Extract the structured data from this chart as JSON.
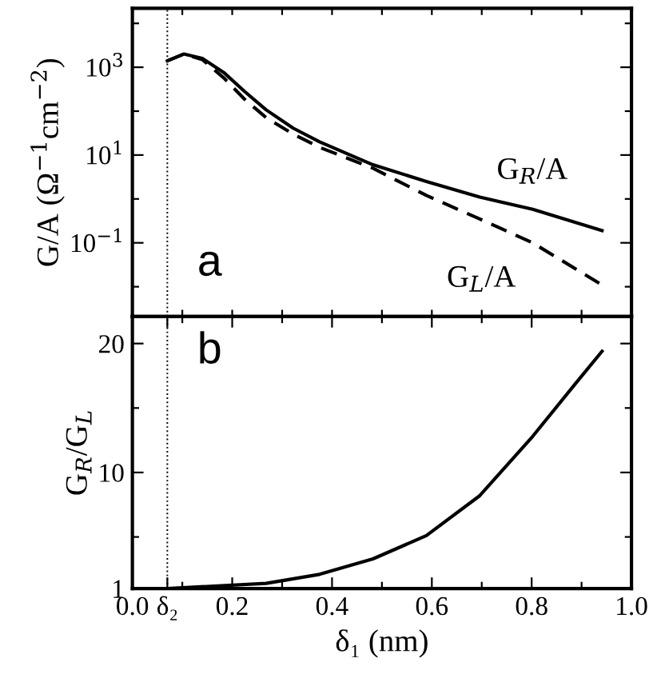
{
  "chart_data": [
    {
      "type": "line",
      "ylabel": "G/A (Ω$^{−1}$cm$^{−2}$)",
      "log": "y",
      "xlim": [
        0.0,
        1.0
      ],
      "ylim": [
        0.0021,
        22000
      ],
      "tick_labels": "y",
      "xticks": [
        {
          "value": 0.1,
          "label": null
        },
        {
          "value": 0.2,
          "label": null
        },
        {
          "value": 0.3,
          "label": null
        },
        {
          "value": 0.4,
          "label": null
        },
        {
          "value": 0.5,
          "label": null
        },
        {
          "value": 0.6,
          "label": null
        },
        {
          "value": 0.7,
          "label": null
        },
        {
          "value": 0.8,
          "label": null
        },
        {
          "value": 0.9,
          "label": null
        }
      ],
      "yticks": [
        {
          "value": 10000,
          "label": null
        },
        {
          "value": 1000,
          "label": "10$^{3}$"
        },
        {
          "value": 100,
          "label": null
        },
        {
          "value": 10,
          "label": "10$^{1}$"
        },
        {
          "value": 1,
          "label": null
        },
        {
          "value": 0.1,
          "label": "10$^{−1}$"
        },
        {
          "value": 0.01,
          "label": null
        }
      ],
      "series": [
        {
          "color": "#000000",
          "line_style": "solid",
          "x": [
            0.07,
            0.103,
            0.14,
            0.183,
            0.225,
            0.268,
            0.322,
            0.375,
            0.482,
            0.589,
            0.696,
            0.802,
            0.941
          ],
          "values": [
            1400,
            2000,
            1600,
            760,
            280,
            107,
            41,
            20,
            6.0,
            2.5,
            1.1,
            0.58,
            0.19
          ]
        },
        {
          "color": "#000000",
          "line_style": "dashed",
          "x": [
            0.07,
            0.103,
            0.14,
            0.183,
            0.225,
            0.268,
            0.322,
            0.375,
            0.482,
            0.589,
            0.696,
            0.802,
            0.941
          ],
          "values": [
            1400,
            2000,
            1500,
            575,
            186,
            71,
            30,
            15,
            5.0,
            1.2,
            0.35,
            0.1,
            0.011
          ]
        }
      ],
      "ref_lines": [
        {
          "axis": "x",
          "value": 0.07,
          "line_style": "dotted"
        }
      ],
      "annotations": [
        "G$_{R}$/A",
        "G$_{L}$/A",
        "a"
      ],
      "marker": "none",
      "grid": false,
      "legend": false
    },
    {
      "type": "line",
      "xlabel": "δ₁ (nm)",
      "ylabel": "G$_{R}$/G$_{L}$",
      "xlim": [
        0.0,
        1.0
      ],
      "ylim": [
        1,
        22.1
      ],
      "xticks": [
        {
          "value": 0.0,
          "label": "0.0"
        },
        {
          "value": 0.07,
          "label": "δ₂"
        },
        {
          "value": 0.1,
          "label": null
        },
        0.2,
        {
          "value": 0.3,
          "label": null
        },
        0.4,
        {
          "value": 0.5,
          "label": null
        },
        0.6,
        {
          "value": 0.7,
          "label": null
        },
        0.8,
        {
          "value": 0.9,
          "label": null
        },
        {
          "value": 1.0,
          "label": "1.0"
        }
      ],
      "yticks": [
        1,
        {
          "value": 5,
          "label": null
        },
        10,
        {
          "value": 15,
          "label": null
        },
        20
      ],
      "series": [
        {
          "color": "#000000",
          "line_style": "solid",
          "x": [
            0.07,
            0.268,
            0.375,
            0.482,
            0.589,
            0.696,
            0.802,
            0.888,
            0.941
          ],
          "values": [
            1.0,
            1.4,
            2.1,
            3.3,
            5.1,
            8.2,
            12.8,
            16.9,
            19.4
          ]
        }
      ],
      "ref_lines": [
        {
          "axis": "x",
          "value": 0.07,
          "line_style": "dotted"
        }
      ],
      "annotations": [
        "b"
      ],
      "marker": "none",
      "grid": false,
      "legend": false
    }
  ]
}
